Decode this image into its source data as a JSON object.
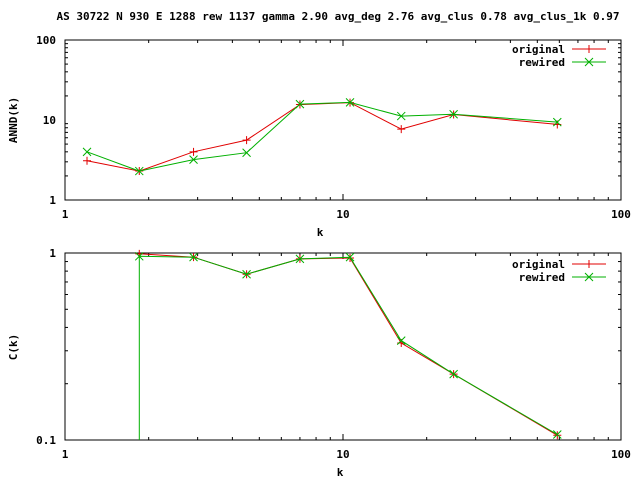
{
  "header": {
    "title": "AS 30722 N 930 E 1288 rew 1137 gamma 2.90 avg_deg 2.76 avg_clus 0.78 avg_clus_1k 0.97"
  },
  "chart_data": [
    {
      "type": "line",
      "xlabel": "k",
      "ylabel": "ANND(k)",
      "xscale": "log",
      "yscale": "log",
      "xlim": [
        1,
        100
      ],
      "ylim": [
        1,
        100
      ],
      "x_ticks": [
        "1",
        "10",
        "100"
      ],
      "y_ticks": [
        "1",
        "10",
        "100"
      ],
      "legend_position": "top-right",
      "series": [
        {
          "name": "original",
          "color": "#e00000",
          "marker": "plus",
          "x": [
            1.2,
            1.85,
            2.9,
            4.5,
            7.0,
            10.6,
            16.2,
            25.0,
            59.0
          ],
          "y": [
            3.1,
            2.3,
            4.0,
            5.6,
            15.6,
            16.5,
            7.7,
            11.7,
            8.8
          ]
        },
        {
          "name": "rewired",
          "color": "#00b000",
          "marker": "cross",
          "x": [
            1.2,
            1.85,
            2.9,
            4.5,
            7.0,
            10.6,
            16.2,
            25.0,
            59.0
          ],
          "y": [
            4.0,
            2.3,
            3.2,
            3.9,
            15.8,
            16.6,
            11.2,
            11.8,
            9.4
          ]
        }
      ]
    },
    {
      "type": "line",
      "xlabel": "k",
      "ylabel": "C(k)",
      "xscale": "log",
      "yscale": "log",
      "xlim": [
        1,
        100
      ],
      "ylim": [
        0.1,
        1
      ],
      "x_ticks": [
        "1",
        "10",
        "100"
      ],
      "y_ticks": [
        "0.1",
        "1"
      ],
      "legend_position": "top-right",
      "series": [
        {
          "name": "original",
          "color": "#e00000",
          "marker": "plus",
          "x": [
            1.85,
            2.9,
            4.5,
            7.0,
            10.6,
            16.2,
            25.0,
            59.0
          ],
          "y": [
            0.99,
            0.95,
            0.77,
            0.93,
            0.94,
            0.33,
            0.225,
            0.106
          ]
        },
        {
          "name": "rewired",
          "color": "#00b000",
          "marker": "cross",
          "x": [
            1.85,
            1.85,
            2.9,
            4.5,
            7.0,
            10.6,
            16.2,
            25.0,
            59.0
          ],
          "y": [
            0.1,
            0.96,
            0.95,
            0.77,
            0.93,
            0.95,
            0.34,
            0.225,
            0.107
          ]
        }
      ]
    }
  ]
}
